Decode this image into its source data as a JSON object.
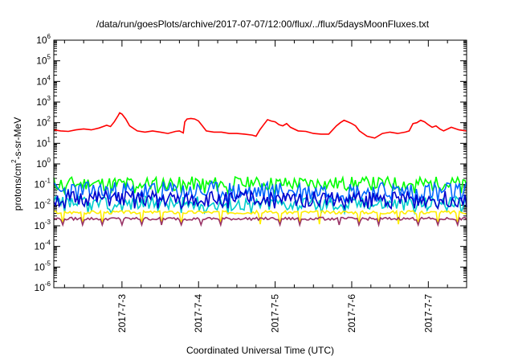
{
  "chart_data": {
    "type": "line",
    "title": "/data/run/goesPlots/archive/2017-07-07/12:00/flux/../flux/5daysMoonFluxes.txt",
    "xlabel": "Coordinated Universal Time (UTC)",
    "ylabel": {
      "prefix": "protons/cm",
      "sup": "2",
      "suffix": "-s-sr-MeV"
    },
    "yscale": "log",
    "ylim_exp": [
      -6,
      6
    ],
    "ytick_exponents": [
      6,
      5,
      4,
      3,
      2,
      1,
      0,
      -1,
      -2,
      -3,
      -4,
      -5,
      -6
    ],
    "xlim_days": [
      2.11,
      7.5
    ],
    "xticks": [
      {
        "day": 3,
        "label": "2017-7-3"
      },
      {
        "day": 4,
        "label": "2017-7-4"
      },
      {
        "day": 5,
        "label": "2017-7-5"
      },
      {
        "day": 6,
        "label": "2017-7-6"
      },
      {
        "day": 7,
        "label": "2017-7-7"
      }
    ],
    "grid": false,
    "legend": "none",
    "series": [
      {
        "color": "#ff0000",
        "points": [
          [
            2.11,
            45
          ],
          [
            2.2,
            40
          ],
          [
            2.3,
            38
          ],
          [
            2.4,
            45
          ],
          [
            2.5,
            50
          ],
          [
            2.6,
            45
          ],
          [
            2.7,
            55
          ],
          [
            2.8,
            75
          ],
          [
            2.85,
            65
          ],
          [
            2.9,
            110
          ],
          [
            2.95,
            220
          ],
          [
            2.97,
            300
          ],
          [
            3.0,
            260
          ],
          [
            3.05,
            150
          ],
          [
            3.1,
            70
          ],
          [
            3.2,
            40
          ],
          [
            3.3,
            35
          ],
          [
            3.4,
            40
          ],
          [
            3.5,
            35
          ],
          [
            3.6,
            30
          ],
          [
            3.7,
            38
          ],
          [
            3.75,
            40
          ],
          [
            3.8,
            32
          ],
          [
            3.82,
            110
          ],
          [
            3.85,
            150
          ],
          [
            3.9,
            160
          ],
          [
            3.95,
            150
          ],
          [
            4.0,
            120
          ],
          [
            4.05,
            70
          ],
          [
            4.1,
            40
          ],
          [
            4.2,
            35
          ],
          [
            4.3,
            35
          ],
          [
            4.4,
            30
          ],
          [
            4.5,
            30
          ],
          [
            4.6,
            28
          ],
          [
            4.7,
            25
          ],
          [
            4.75,
            22
          ],
          [
            4.8,
            45
          ],
          [
            4.85,
            80
          ],
          [
            4.9,
            140
          ],
          [
            4.95,
            120
          ],
          [
            5.0,
            110
          ],
          [
            5.05,
            80
          ],
          [
            5.1,
            70
          ],
          [
            5.15,
            90
          ],
          [
            5.2,
            60
          ],
          [
            5.3,
            40
          ],
          [
            5.4,
            38
          ],
          [
            5.5,
            30
          ],
          [
            5.6,
            28
          ],
          [
            5.7,
            28
          ],
          [
            5.8,
            70
          ],
          [
            5.85,
            100
          ],
          [
            5.9,
            130
          ],
          [
            5.95,
            110
          ],
          [
            6.0,
            90
          ],
          [
            6.05,
            70
          ],
          [
            6.1,
            40
          ],
          [
            6.2,
            22
          ],
          [
            6.3,
            18
          ],
          [
            6.4,
            30
          ],
          [
            6.5,
            35
          ],
          [
            6.6,
            30
          ],
          [
            6.7,
            35
          ],
          [
            6.75,
            40
          ],
          [
            6.8,
            90
          ],
          [
            6.85,
            100
          ],
          [
            6.9,
            130
          ],
          [
            6.95,
            110
          ],
          [
            7.0,
            80
          ],
          [
            7.05,
            60
          ],
          [
            7.1,
            70
          ],
          [
            7.15,
            50
          ],
          [
            7.2,
            40
          ],
          [
            7.3,
            60
          ],
          [
            7.4,
            45
          ],
          [
            7.5,
            40
          ]
        ]
      },
      {
        "color": "#00ff00",
        "base": 0.11,
        "amp": 0.35,
        "seed": 11
      },
      {
        "color": "#0066ff",
        "base": 0.045,
        "amp": 0.5,
        "seed": 23
      },
      {
        "color": "#00cccc",
        "base": 0.012,
        "amp": 0.35,
        "seed": 37
      },
      {
        "color": "#0000cc",
        "base": 0.02,
        "amp": 0.4,
        "seed": 51
      },
      {
        "color": "#ffee00",
        "base": 0.0045,
        "amp": 0.08,
        "seed": 67,
        "dips": 0.0012
      },
      {
        "color": "#993366",
        "base": 0.0022,
        "amp": 0.07,
        "seed": 79,
        "dips": 0.0011
      }
    ]
  }
}
